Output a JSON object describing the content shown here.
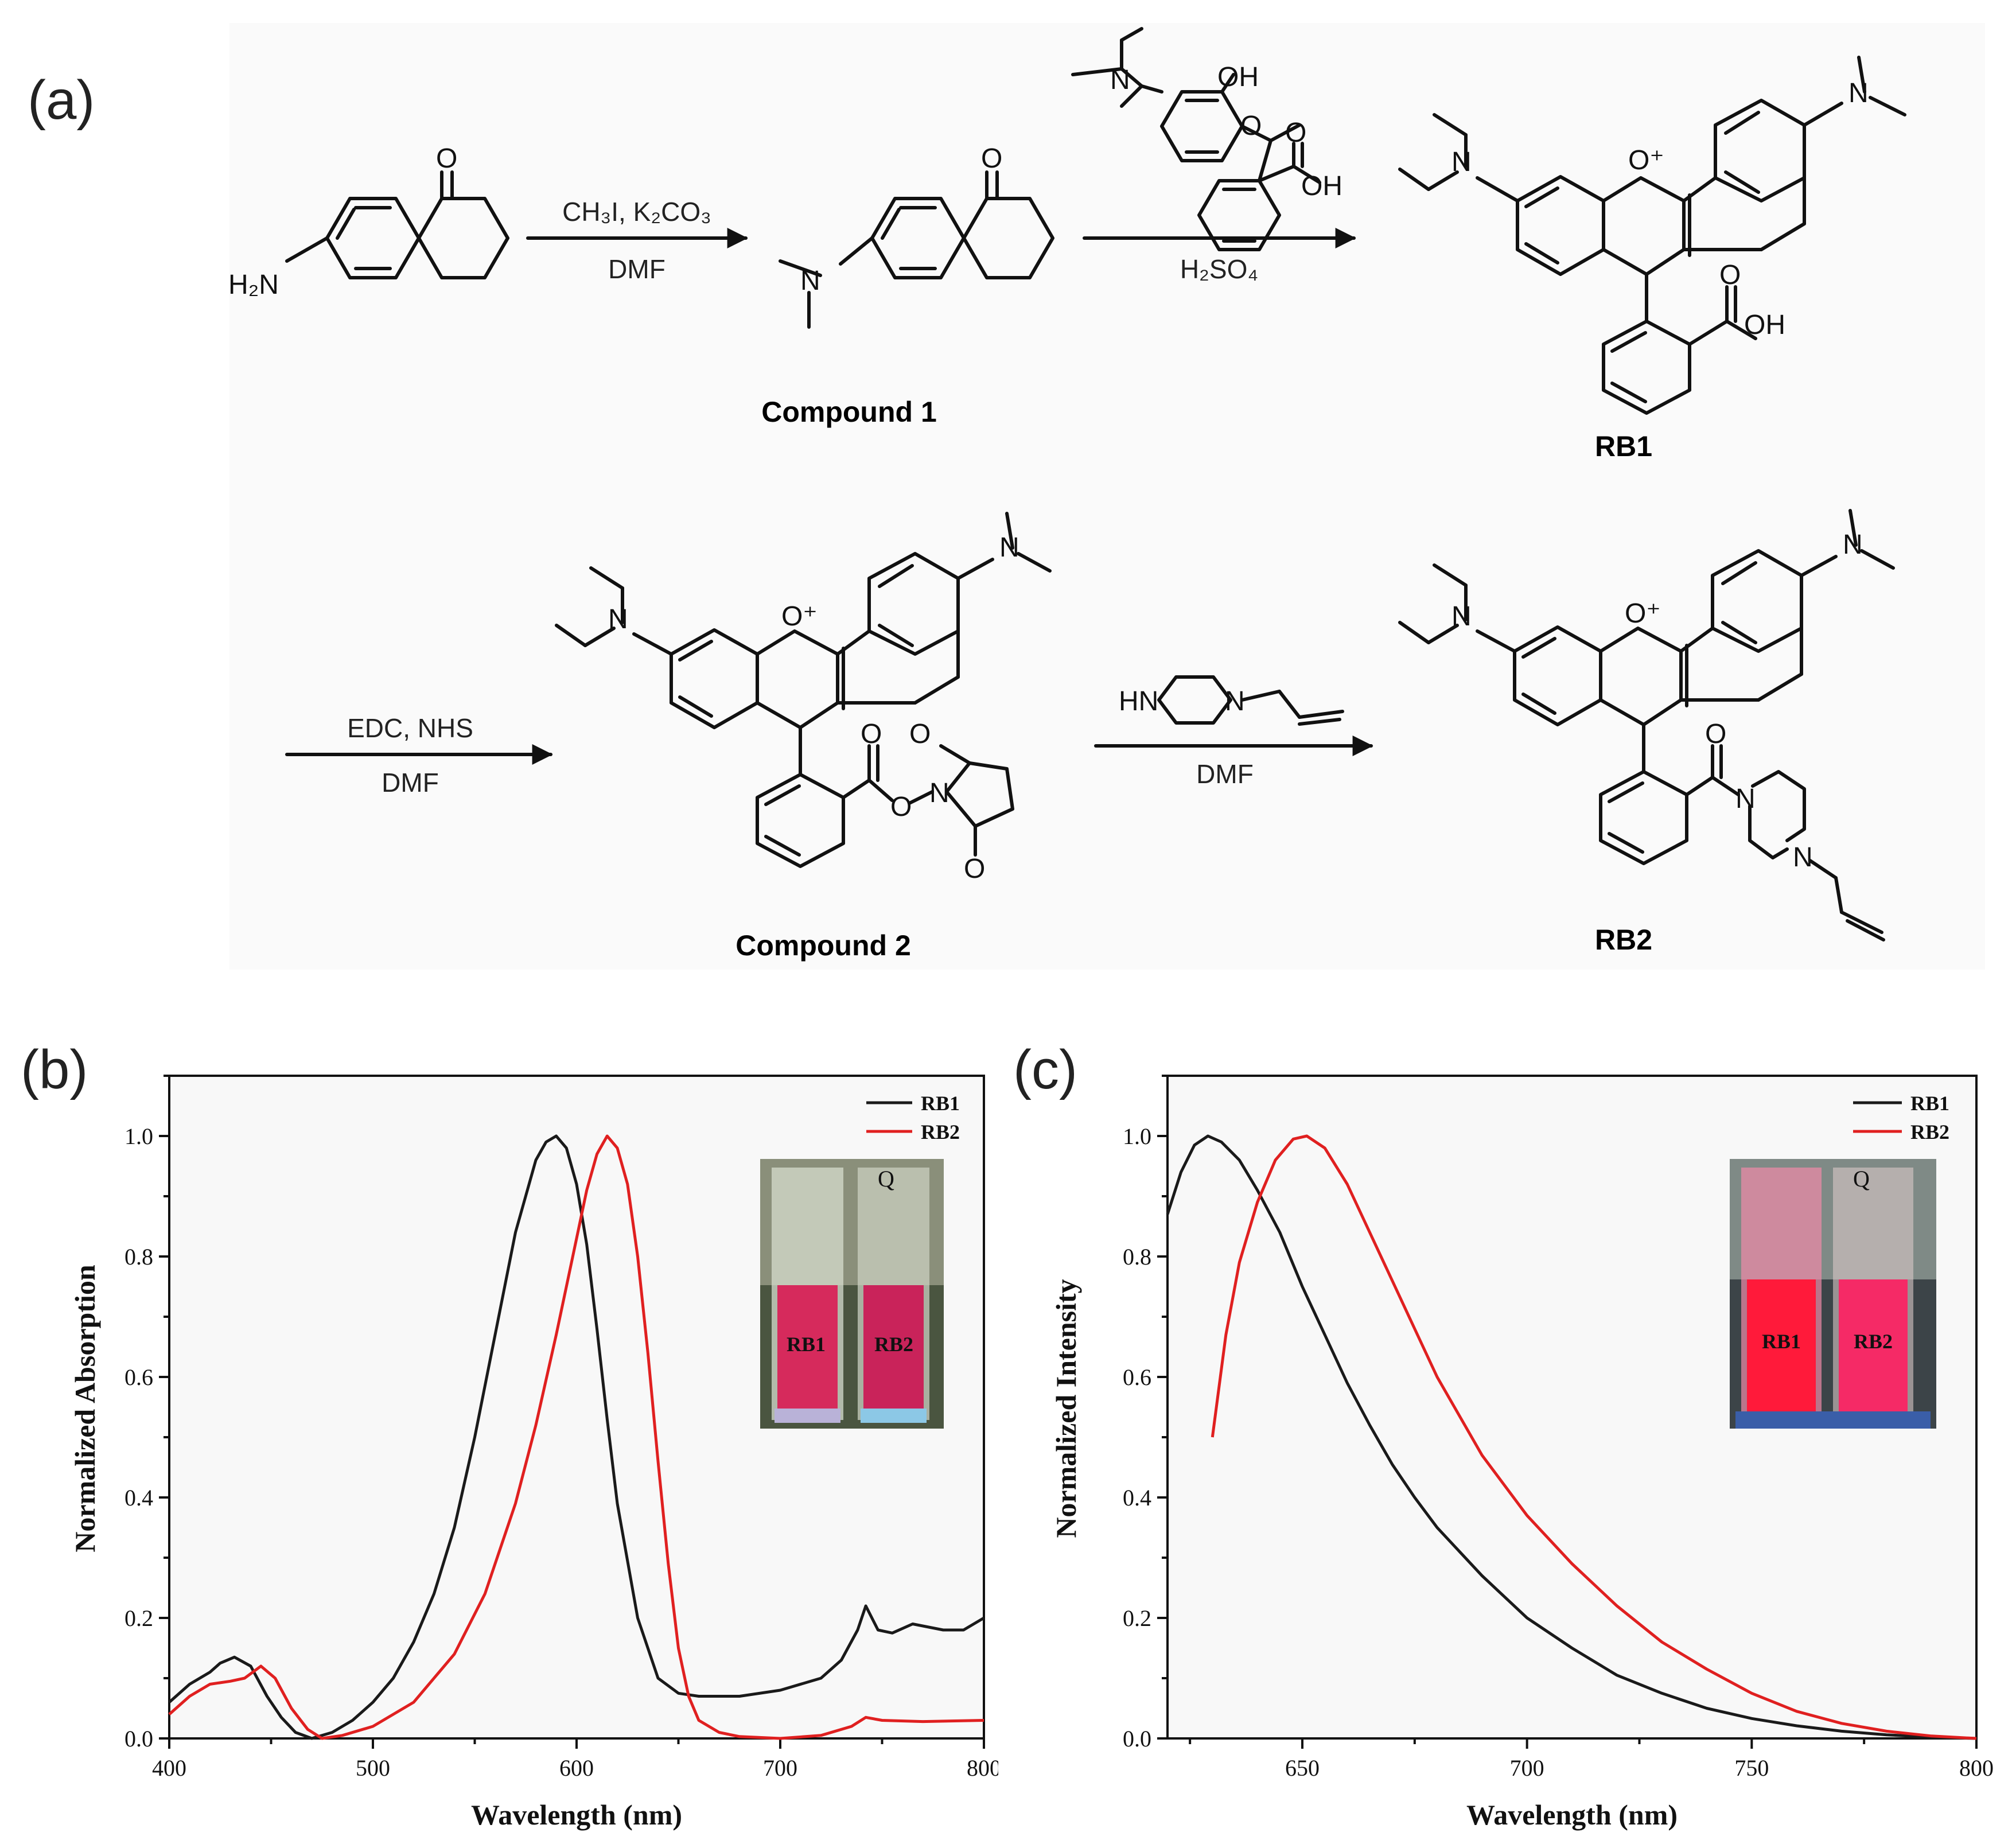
{
  "panels": {
    "a": "(a)",
    "b": "(b)",
    "c": "(c)"
  },
  "scheme": {
    "compounds": {
      "start": {
        "nh2": "H₂N",
        "o": "O"
      },
      "compound1": {
        "label": "Compound 1",
        "n": "N",
        "o": "O"
      },
      "reagent2": {
        "n": "N",
        "oh": "OH",
        "o": "O",
        "acid_o": "O",
        "acid_oh": "OH"
      },
      "rb1": {
        "label": "RB1",
        "n1": "N",
        "n2": "N",
        "oplus": "O⁺",
        "o": "O",
        "oh": "OH"
      },
      "compound2": {
        "label": "Compound 2",
        "n1": "N",
        "n2": "N",
        "oplus": "O⁺",
        "o_ester": "O",
        "o_link": "O",
        "n_imide": "N",
        "o_imide1": "O",
        "o_imide2": "O"
      },
      "rb2": {
        "label": "RB2",
        "n1": "N",
        "n2": "N",
        "oplus": "O⁺",
        "o_amide": "O",
        "n_pip1": "N",
        "n_pip2": "N"
      },
      "reagent4": {
        "hn": "HN",
        "n": "N"
      }
    },
    "arrows": {
      "step1": {
        "above": "CH₃I, K₂CO₃",
        "below": "DMF"
      },
      "step2": {
        "below": "H₂SO₄"
      },
      "step3": {
        "above": "EDC, NHS",
        "below": "DMF"
      },
      "step4": {
        "below": "DMF"
      }
    }
  },
  "charts": {
    "b": {
      "xlabel": "Wavelength (nm)",
      "ylabel": "Normalized Absorption",
      "xticks": [
        "400",
        "500",
        "600",
        "700",
        "800"
      ],
      "yticks": [
        "0.0",
        "0.2",
        "0.4",
        "0.6",
        "0.8",
        "1.0"
      ],
      "legend": [
        "RB1",
        "RB2"
      ],
      "inset": {
        "left_label": "RB1",
        "right_label": "RB2",
        "cap_mark": "Q"
      }
    },
    "c": {
      "xlabel": "Wavelength (nm)",
      "ylabel": "Normalized Intensity",
      "xticks": [
        "650",
        "700",
        "750",
        "800"
      ],
      "yticks": [
        "0.0",
        "0.2",
        "0.4",
        "0.6",
        "0.8",
        "1.0"
      ],
      "legend": [
        "RB1",
        "RB2"
      ],
      "inset": {
        "left_label": "RB1",
        "right_label": "RB2",
        "cap_mark": "Q"
      }
    }
  },
  "chart_data": [
    {
      "type": "line",
      "panel": "b",
      "xlabel": "Wavelength (nm)",
      "ylabel": "Normalized Absorption",
      "xlim": [
        400,
        800
      ],
      "ylim": [
        0,
        1.1
      ],
      "legend_position": "top-right",
      "colors": {
        "RB1": "#1a1a1a",
        "RB2": "#e02020"
      },
      "series": [
        {
          "name": "RB1",
          "x": [
            400,
            410,
            420,
            425,
            432,
            440,
            448,
            455,
            462,
            470,
            480,
            490,
            500,
            510,
            520,
            530,
            540,
            550,
            560,
            570,
            580,
            585,
            590,
            595,
            600,
            605,
            610,
            615,
            620,
            630,
            640,
            650,
            660,
            680,
            700,
            720,
            730,
            738,
            742,
            748,
            755,
            765,
            780,
            790,
            800
          ],
          "y": [
            0.06,
            0.09,
            0.11,
            0.125,
            0.135,
            0.12,
            0.07,
            0.035,
            0.01,
            0.0,
            0.01,
            0.03,
            0.06,
            0.1,
            0.16,
            0.24,
            0.35,
            0.5,
            0.67,
            0.84,
            0.96,
            0.99,
            1.0,
            0.98,
            0.92,
            0.82,
            0.68,
            0.53,
            0.39,
            0.2,
            0.1,
            0.075,
            0.07,
            0.07,
            0.08,
            0.1,
            0.13,
            0.18,
            0.22,
            0.18,
            0.175,
            0.19,
            0.18,
            0.18,
            0.2
          ]
        },
        {
          "name": "RB2",
          "x": [
            400,
            410,
            420,
            430,
            437,
            445,
            452,
            460,
            468,
            475,
            485,
            500,
            520,
            540,
            555,
            570,
            580,
            590,
            600,
            605,
            610,
            615,
            620,
            625,
            630,
            635,
            640,
            645,
            650,
            655,
            660,
            670,
            680,
            700,
            720,
            735,
            742,
            750,
            770,
            800
          ],
          "y": [
            0.04,
            0.07,
            0.09,
            0.095,
            0.1,
            0.12,
            0.1,
            0.05,
            0.015,
            0.0,
            0.005,
            0.02,
            0.06,
            0.14,
            0.24,
            0.39,
            0.52,
            0.67,
            0.83,
            0.91,
            0.97,
            1.0,
            0.98,
            0.92,
            0.8,
            0.64,
            0.46,
            0.29,
            0.15,
            0.07,
            0.03,
            0.01,
            0.003,
            0.0,
            0.005,
            0.02,
            0.035,
            0.03,
            0.028,
            0.03
          ]
        }
      ]
    },
    {
      "type": "line",
      "panel": "c",
      "xlabel": "Wavelength (nm)",
      "ylabel": "Normalized Intensity",
      "xlim": [
        620,
        800
      ],
      "ylim": [
        0,
        1.1
      ],
      "legend_position": "top-right",
      "colors": {
        "RB1": "#1a1a1a",
        "RB2": "#e02020"
      },
      "series": [
        {
          "name": "RB1",
          "x": [
            620,
            623,
            626,
            629,
            632,
            636,
            640,
            645,
            650,
            655,
            660,
            665,
            670,
            675,
            680,
            690,
            700,
            710,
            720,
            730,
            740,
            750,
            760,
            770,
            780,
            790,
            800
          ],
          "y": [
            0.87,
            0.94,
            0.985,
            1.0,
            0.99,
            0.96,
            0.91,
            0.84,
            0.75,
            0.67,
            0.59,
            0.52,
            0.455,
            0.4,
            0.35,
            0.27,
            0.2,
            0.15,
            0.105,
            0.075,
            0.05,
            0.033,
            0.021,
            0.012,
            0.006,
            0.002,
            0.0
          ]
        },
        {
          "name": "RB2",
          "x": [
            630,
            633,
            636,
            640,
            644,
            648,
            651,
            655,
            660,
            665,
            670,
            675,
            680,
            690,
            700,
            710,
            720,
            730,
            740,
            750,
            760,
            770,
            780,
            790,
            800
          ],
          "y": [
            0.5,
            0.67,
            0.79,
            0.89,
            0.96,
            0.995,
            1.0,
            0.98,
            0.92,
            0.84,
            0.76,
            0.68,
            0.6,
            0.47,
            0.37,
            0.29,
            0.22,
            0.16,
            0.115,
            0.075,
            0.045,
            0.025,
            0.012,
            0.004,
            0.0
          ]
        }
      ]
    }
  ]
}
